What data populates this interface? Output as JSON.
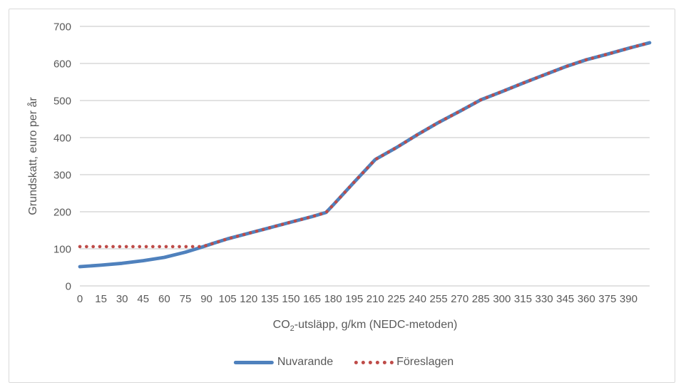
{
  "chart": {
    "background": "#FFFFFF",
    "border_color": "#D9D9D9",
    "grid_color": "#D9D9D9",
    "text_color": "#595959",
    "xlabel_pre": "CO",
    "xlabel_sub": "2",
    "xlabel_post": "-utsläpp, g/km (NEDC-metoden)",
    "legend_dot_count": 6
  },
  "chart_data": {
    "type": "line",
    "title": "",
    "xlabel": "CO2-utsläpp, g/km (NEDC-metoden)",
    "ylabel": "Grundskatt, euro per år",
    "xlim": [
      0,
      405
    ],
    "ylim": [
      0,
      700
    ],
    "x_ticks": [
      0,
      15,
      30,
      45,
      60,
      75,
      90,
      105,
      120,
      135,
      150,
      165,
      180,
      195,
      210,
      225,
      240,
      255,
      270,
      285,
      300,
      315,
      330,
      345,
      360,
      375,
      390
    ],
    "y_ticks": [
      0,
      100,
      200,
      300,
      400,
      500,
      600,
      700
    ],
    "grid": "horizontal",
    "legend_position": "bottom",
    "series": [
      {
        "name": "Nuvarande",
        "color": "#4F81BD",
        "line_style": "solid",
        "points": [
          [
            0,
            52
          ],
          [
            15,
            56
          ],
          [
            30,
            61
          ],
          [
            45,
            68
          ],
          [
            60,
            77
          ],
          [
            75,
            91
          ],
          [
            82,
            99
          ],
          [
            87,
            105
          ],
          [
            95,
            115
          ],
          [
            105,
            127
          ],
          [
            120,
            142
          ],
          [
            135,
            157
          ],
          [
            150,
            172
          ],
          [
            165,
            187
          ],
          [
            175,
            198
          ],
          [
            180,
            218
          ],
          [
            195,
            280
          ],
          [
            210,
            341
          ],
          [
            225,
            373
          ],
          [
            240,
            408
          ],
          [
            255,
            441
          ],
          [
            270,
            471
          ],
          [
            285,
            502
          ],
          [
            300,
            524
          ],
          [
            315,
            547
          ],
          [
            330,
            569
          ],
          [
            345,
            591
          ],
          [
            360,
            610
          ],
          [
            375,
            625
          ],
          [
            390,
            641
          ],
          [
            405,
            656
          ]
        ]
      },
      {
        "name": "Föreslagen",
        "color": "#BE4B48",
        "line_style": "dotted",
        "points": [
          [
            0,
            106
          ],
          [
            15,
            106
          ],
          [
            30,
            106
          ],
          [
            45,
            106
          ],
          [
            60,
            106
          ],
          [
            75,
            106
          ],
          [
            87,
            106
          ],
          [
            95,
            115
          ],
          [
            105,
            127
          ],
          [
            120,
            142
          ],
          [
            135,
            157
          ],
          [
            150,
            172
          ],
          [
            165,
            187
          ],
          [
            175,
            198
          ],
          [
            180,
            218
          ],
          [
            195,
            280
          ],
          [
            210,
            341
          ],
          [
            225,
            373
          ],
          [
            240,
            408
          ],
          [
            255,
            441
          ],
          [
            270,
            471
          ],
          [
            285,
            502
          ],
          [
            300,
            524
          ],
          [
            315,
            547
          ],
          [
            330,
            569
          ],
          [
            345,
            591
          ],
          [
            360,
            610
          ],
          [
            375,
            625
          ],
          [
            390,
            641
          ],
          [
            405,
            656
          ]
        ]
      }
    ]
  }
}
